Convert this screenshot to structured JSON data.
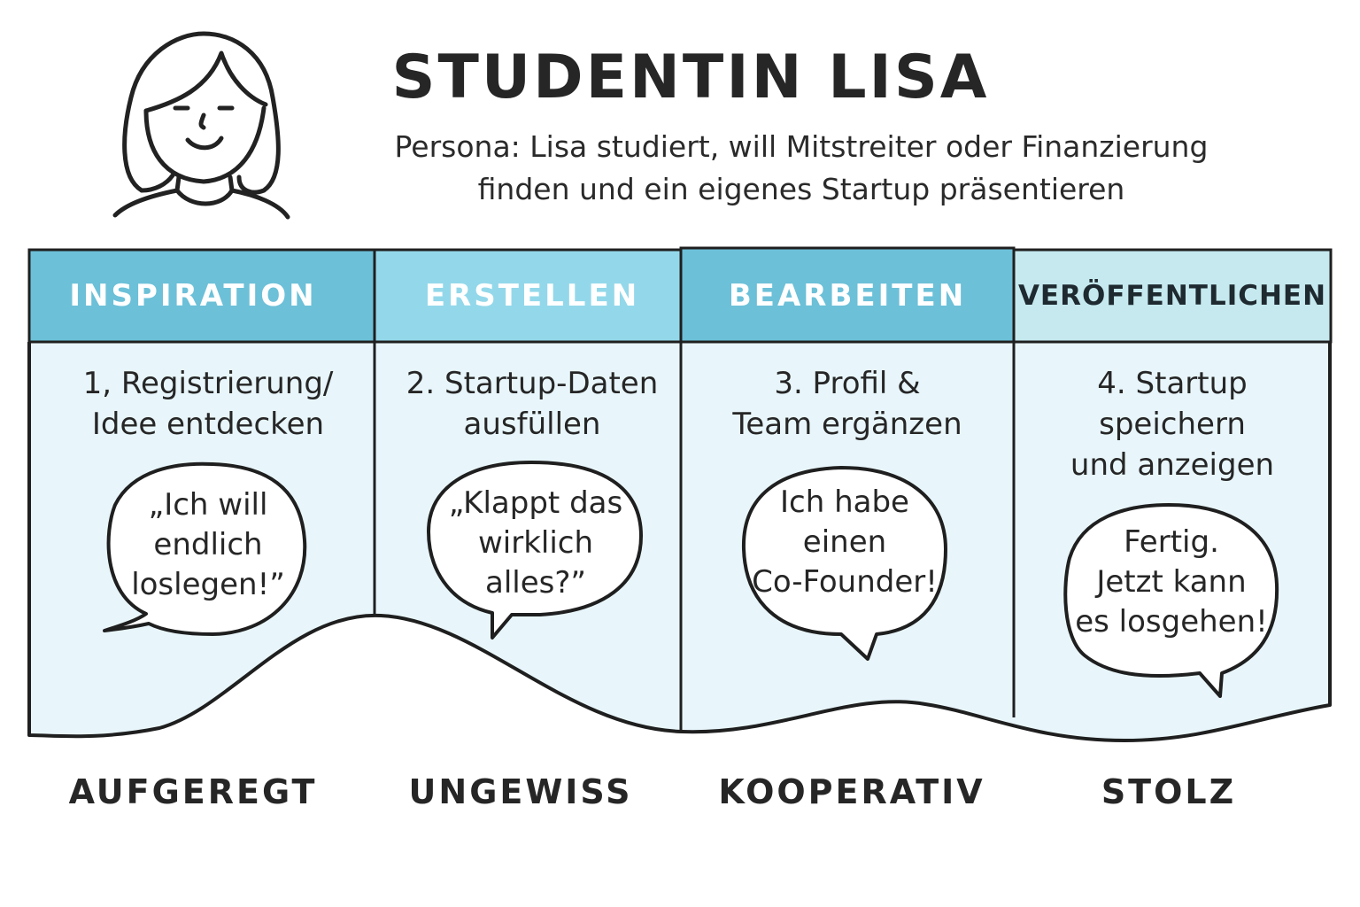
{
  "persona": {
    "avatar_icon": "woman-face-icon",
    "title": "STUDENTIN LISA",
    "subtitle_line1": "Persona: Lisa studiert, will Mitstreiter oder Finanzierung",
    "subtitle_line2": "finden und ein eigenes Startup präsentieren"
  },
  "colors": {
    "header_dark": "#6cc0d8",
    "header_light": "#93d8ea",
    "header_pale": "#c5e9ef",
    "body_fill": "#e8f6fb",
    "stroke": "#1f1f1f"
  },
  "phases": [
    {
      "label": "INSPIRATION",
      "step_line1": "1, Registrierung/",
      "step_line2": "Idee entdecken",
      "quote_line1": "„Ich will",
      "quote_line2": "endlich",
      "quote_line3": "loslegen!”",
      "emotion": "AUFGEREGT"
    },
    {
      "label": "ERSTELLEN",
      "step_line1": "2. Startup-Daten",
      "step_line2": "ausfüllen",
      "quote_line1": "„Klappt das",
      "quote_line2": "wirklich",
      "quote_line3": "alles?”",
      "emotion": "UNGEWISS"
    },
    {
      "label": "BEARBEITEN",
      "step_line1": "3. Profil &",
      "step_line2": "Team ergänzen",
      "quote_line1": "Ich habe",
      "quote_line2": "einen",
      "quote_line3": "Co-Founder!",
      "emotion": "KOOPERATIV"
    },
    {
      "label": "VERÖFFENTLICHEN",
      "step_line1": "4. Startup",
      "step_line2": "speichern",
      "step_line3": "und anzeigen",
      "quote_line1": "Fertig.",
      "quote_line2": "Jetzt kann",
      "quote_line3": "es losgehen!",
      "emotion": "STOLZ"
    }
  ]
}
